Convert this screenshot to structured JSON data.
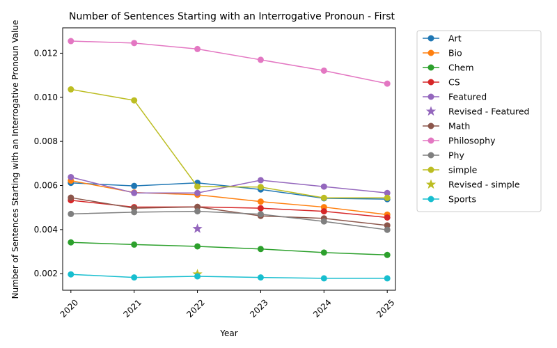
{
  "chart_data": {
    "type": "line",
    "title": "Number of Sentences Starting with an Interrogative Pronoun - First",
    "xlabel": "Year",
    "ylabel": "Number of Sentences Starting with an Interrogative Pronoun Value",
    "x": [
      2020,
      2021,
      2022,
      2023,
      2024,
      2025
    ],
    "xticks": [
      "2020",
      "2021",
      "2022",
      "2023",
      "2024",
      "2025"
    ],
    "yticks": [
      0.002,
      0.004,
      0.006,
      0.008,
      0.01,
      0.012
    ],
    "yticklabels": [
      "0.002",
      "0.004",
      "0.006",
      "0.008",
      "0.010",
      "0.012"
    ],
    "xlim": [
      2019.87,
      2025.13
    ],
    "ylim": [
      0.00125,
      0.01315
    ],
    "grid": false,
    "legend_position": "outside-right",
    "series": [
      {
        "name": "Art",
        "color": "#1f77b4",
        "marker": "circle",
        "values": [
          0.00612,
          0.00598,
          0.00612,
          0.00582,
          0.00542,
          0.00538
        ]
      },
      {
        "name": "Bio",
        "color": "#ff7f0e",
        "marker": "circle",
        "values": [
          0.00622,
          0.00568,
          0.00558,
          0.00527,
          0.00502,
          0.00468
        ]
      },
      {
        "name": "Chem",
        "color": "#2ca02c",
        "marker": "circle",
        "values": [
          0.00342,
          0.00332,
          0.00324,
          0.00312,
          0.00296,
          0.00285
        ]
      },
      {
        "name": "CS",
        "color": "#d62728",
        "marker": "circle",
        "values": [
          0.00533,
          0.00502,
          0.00503,
          0.00497,
          0.00483,
          0.00455
        ]
      },
      {
        "name": "Featured",
        "color": "#9467bd",
        "marker": "circle",
        "values": [
          0.00638,
          0.00566,
          0.00566,
          0.00624,
          0.00595,
          0.00566
        ]
      },
      {
        "name": "Revised - Featured",
        "color": "#9467bd",
        "marker": "star",
        "points": [
          {
            "x": 2022,
            "y": 0.00404
          }
        ]
      },
      {
        "name": "Math",
        "color": "#8c564b",
        "marker": "circle",
        "values": [
          0.00545,
          0.00497,
          0.00503,
          0.00462,
          0.00451,
          0.00419
        ]
      },
      {
        "name": "Philosophy",
        "color": "#e377c2",
        "marker": "circle",
        "values": [
          0.01255,
          0.01246,
          0.01219,
          0.0117,
          0.01121,
          0.01062
        ]
      },
      {
        "name": "Phy",
        "color": "#7f7f7f",
        "marker": "circle",
        "values": [
          0.00471,
          0.00479,
          0.00483,
          0.0047,
          0.00437,
          0.00399
        ]
      },
      {
        "name": "simple",
        "color": "#bcbd22",
        "marker": "circle",
        "values": [
          0.01036,
          0.00986,
          0.00595,
          0.00593,
          0.00544,
          0.00544
        ]
      },
      {
        "name": "Revised - simple",
        "color": "#bcbd22",
        "marker": "star",
        "points": [
          {
            "x": 2022,
            "y": 0.00198
          }
        ]
      },
      {
        "name": "Sports",
        "color": "#17becf",
        "marker": "circle",
        "values": [
          0.00197,
          0.00183,
          0.00188,
          0.00183,
          0.00179,
          0.00179
        ]
      }
    ]
  }
}
